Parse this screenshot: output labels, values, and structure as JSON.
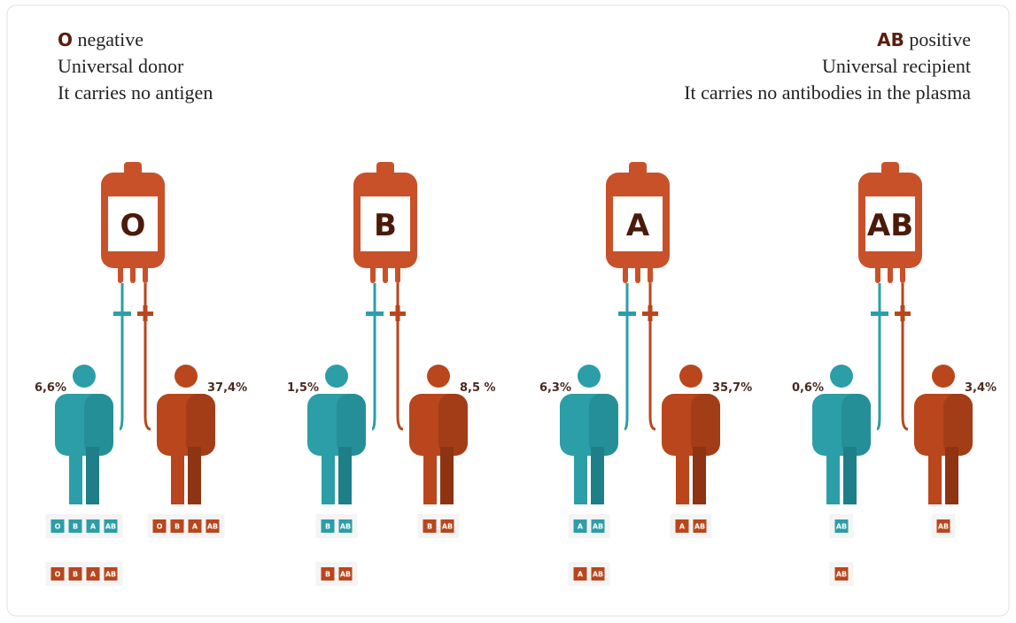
{
  "header": {
    "left": {
      "type": "O",
      "type_suffix": "negative",
      "lines": [
        "Universal donor",
        "It carries no antigen"
      ]
    },
    "right": {
      "type": "AB",
      "type_suffix": "positive",
      "lines": [
        "Universal recipient",
        "It carries no antibodies in the plasma"
      ]
    }
  },
  "groups": [
    {
      "label": "O",
      "negative": "6,6%",
      "positive": "37,4%",
      "negative_row": [
        "O",
        "B",
        "A",
        "AB"
      ],
      "positive_row": [
        "O",
        "B",
        "A",
        "AB"
      ],
      "second_row": [
        "O",
        "B",
        "A",
        "AB"
      ]
    },
    {
      "label": "B",
      "negative": "1,5%",
      "positive": "8,5 %",
      "negative_row": [
        "B",
        "AB"
      ],
      "positive_row": [
        "B",
        "AB"
      ],
      "second_row": [
        "B",
        "AB"
      ]
    },
    {
      "label": "A",
      "negative": "6,3%",
      "positive": "35,7%",
      "negative_row": [
        "A",
        "AB"
      ],
      "positive_row": [
        "A",
        "AB"
      ],
      "second_row": [
        "A",
        "AB"
      ]
    },
    {
      "label": "AB",
      "negative": "0,6%",
      "positive": "3,4%",
      "negative_row": [
        "AB"
      ],
      "positive_row": [
        "AB"
      ],
      "second_row": [
        "AB"
      ]
    }
  ]
}
